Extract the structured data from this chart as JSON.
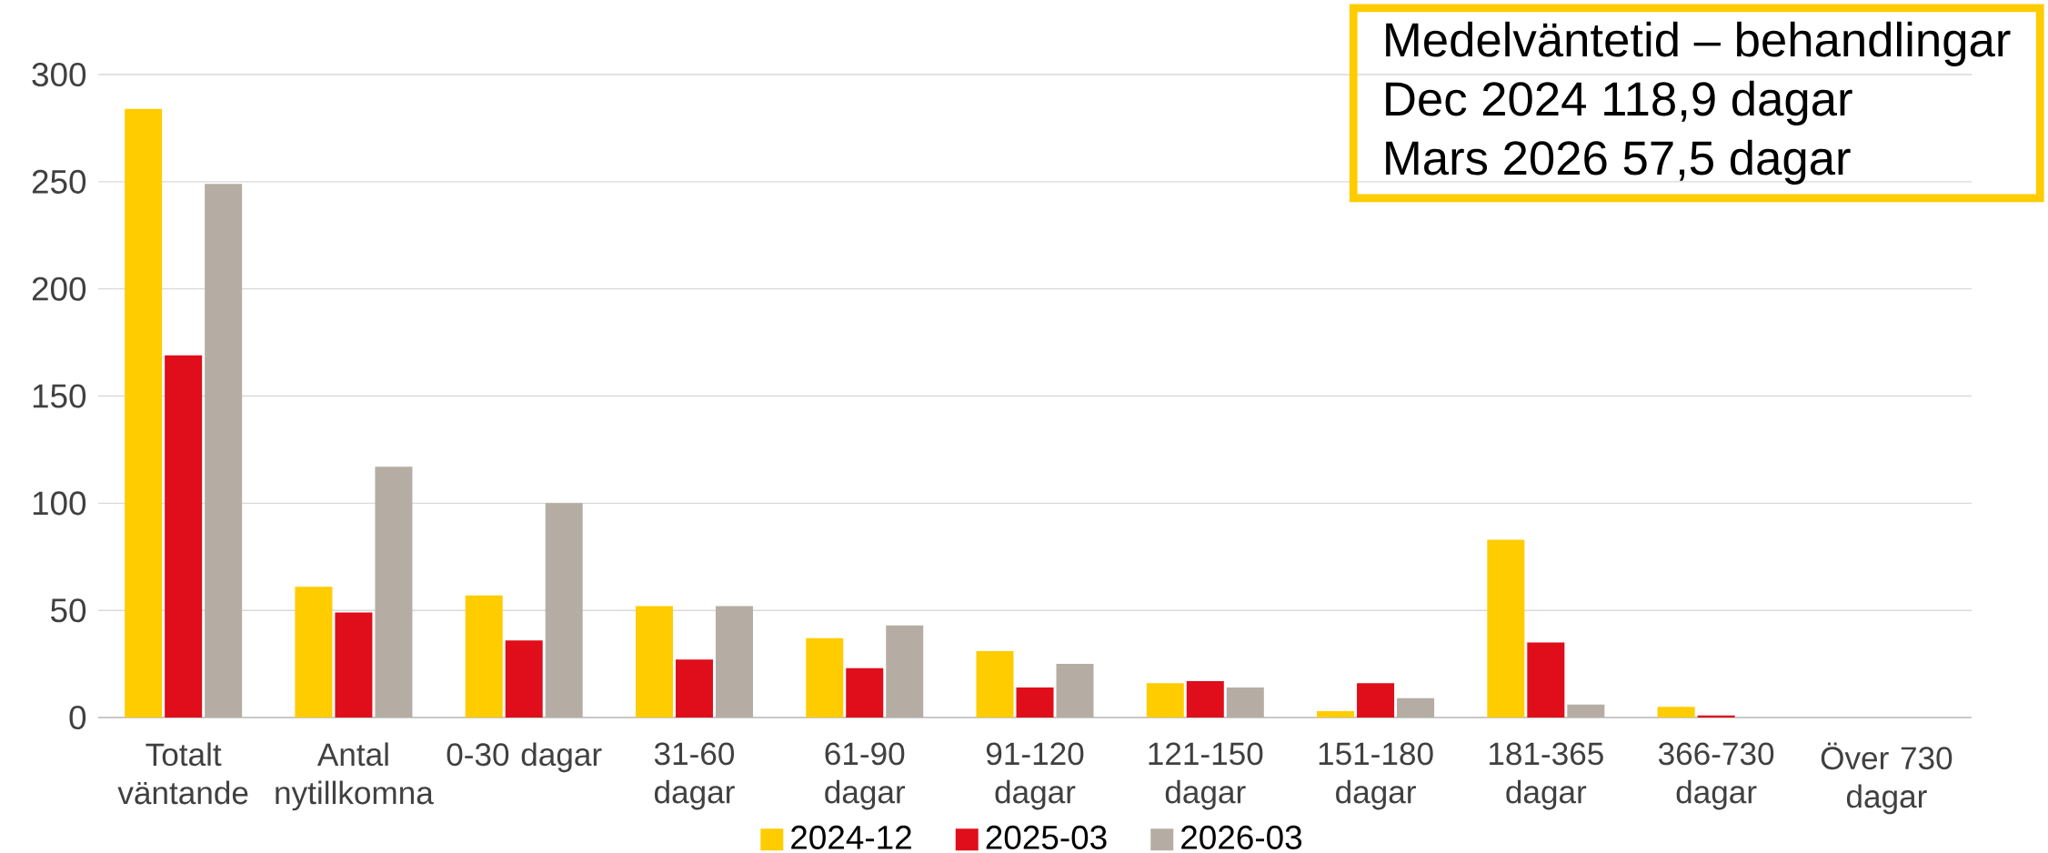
{
  "chart_data": {
    "type": "bar",
    "categories": [
      "Totalt väntande",
      "Antal nytillkomna",
      "0-30 dagar",
      "31-60 dagar",
      "61-90 dagar",
      "91-120 dagar",
      "121-150 dagar",
      "151-180 dagar",
      "181-365 dagar",
      "366-730 dagar",
      "Över 730 dagar"
    ],
    "series": [
      {
        "name": "2024-12",
        "color": "#ffcc00",
        "values": [
          284,
          61,
          57,
          52,
          37,
          31,
          16,
          3,
          83,
          5,
          0
        ]
      },
      {
        "name": "2025-03",
        "color": "#e00d1a",
        "values": [
          169,
          49,
          36,
          27,
          23,
          14,
          17,
          16,
          35,
          1,
          0
        ]
      },
      {
        "name": "2026-03",
        "color": "#b5ada3",
        "values": [
          249,
          117,
          100,
          52,
          43,
          25,
          14,
          9,
          6,
          0,
          0
        ]
      }
    ],
    "ylim": [
      0,
      300
    ],
    "yticks": [
      0,
      50,
      100,
      150,
      200,
      250,
      300
    ],
    "grid": "y",
    "legend": "bottom",
    "annotations": [
      "Medelväntetid – behandlingar",
      "Dec 2024 118,9 dagar",
      "Mars 2026 57,5 dagar"
    ]
  }
}
